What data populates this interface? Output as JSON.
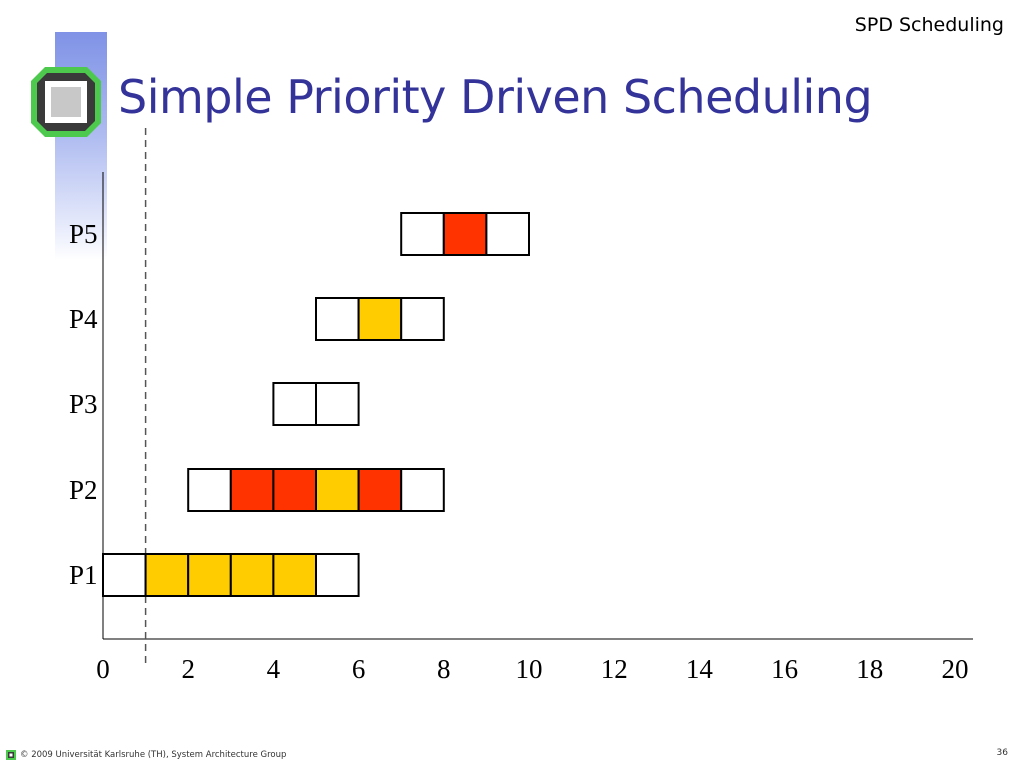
{
  "header": {
    "section": "SPD Scheduling",
    "title": "Simple Priority Driven Scheduling"
  },
  "footer": {
    "copyright": "© 2009 Universität Karlsruhe (TH), System Architecture Group",
    "page_number": "36"
  },
  "colors": {
    "title": "#333399",
    "red": "#ff3300",
    "yellow": "#ffcc00",
    "empty": "#ffffff",
    "logo_green": "#4dc94d"
  },
  "icons": {
    "logo": "university-logo-icon"
  },
  "chart_data": {
    "type": "gantt",
    "x_ticks": [
      "0",
      "2",
      "4",
      "6",
      "8",
      "10",
      "12",
      "14",
      "16",
      "18",
      "20"
    ],
    "xlim": [
      0,
      20
    ],
    "marker_time": 1,
    "rows": [
      {
        "label": "P1",
        "slots": [
          {
            "start": 0,
            "state": "empty"
          },
          {
            "start": 1,
            "state": "yellow"
          },
          {
            "start": 2,
            "state": "yellow"
          },
          {
            "start": 3,
            "state": "yellow"
          },
          {
            "start": 4,
            "state": "yellow"
          },
          {
            "start": 5,
            "state": "empty"
          }
        ]
      },
      {
        "label": "P2",
        "slots": [
          {
            "start": 2,
            "state": "empty"
          },
          {
            "start": 3,
            "state": "red"
          },
          {
            "start": 4,
            "state": "red"
          },
          {
            "start": 5,
            "state": "yellow"
          },
          {
            "start": 6,
            "state": "red"
          },
          {
            "start": 7,
            "state": "empty"
          }
        ]
      },
      {
        "label": "P3",
        "slots": [
          {
            "start": 4,
            "state": "empty"
          },
          {
            "start": 5,
            "state": "empty"
          }
        ]
      },
      {
        "label": "P4",
        "slots": [
          {
            "start": 5,
            "state": "empty"
          },
          {
            "start": 6,
            "state": "yellow"
          },
          {
            "start": 7,
            "state": "empty"
          }
        ]
      },
      {
        "label": "P5",
        "slots": [
          {
            "start": 7,
            "state": "empty"
          },
          {
            "start": 8,
            "state": "red"
          },
          {
            "start": 9,
            "state": "empty"
          }
        ]
      }
    ]
  }
}
